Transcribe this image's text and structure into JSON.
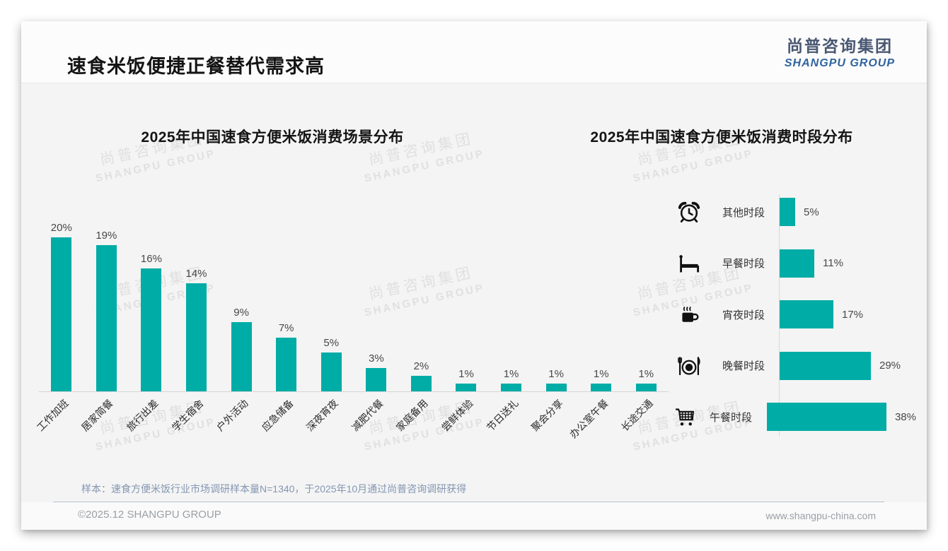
{
  "page": {
    "title": "速食米饭便捷正餐替代需求高",
    "logo": {
      "cn": "尚普咨询集团",
      "en": "SHANGPU GROUP"
    },
    "watermark": {
      "cn": "尚普咨询集团",
      "en": "SHANGPU GROUP"
    },
    "footer": {
      "sample_note": "样本：速食方便米饭行业市场调研样本量N=1340，于2025年10月通过尚普咨询调研获得",
      "copyright": "©2025.12 SHANGPU GROUP",
      "website": "www.shangpu-china.com"
    }
  },
  "colors": {
    "bar_teal": "#00aca6",
    "logo_blue": "#2f639f",
    "logo_gray": "#495772",
    "card_bg": "#f4f4f4"
  },
  "chart_data": [
    {
      "type": "bar",
      "orientation": "vertical",
      "title": "2025年中国速食方便米饭消费场景分布",
      "categories": [
        "工作加班",
        "居家简餐",
        "旅行出差",
        "学生宿舍",
        "户外活动",
        "应急储备",
        "深夜宵夜",
        "减肥代餐",
        "家庭备用",
        "尝鲜体验",
        "节日送礼",
        "聚会分享",
        "办公室午餐",
        "长途交通"
      ],
      "values": [
        20,
        19,
        16,
        14,
        9,
        7,
        5,
        3,
        2,
        1,
        1,
        1,
        1,
        1
      ],
      "unit": "%",
      "ylim": [
        0,
        20
      ],
      "grid": false,
      "value_labels": true,
      "legend": "none"
    },
    {
      "type": "bar",
      "orientation": "horizontal",
      "title": "2025年中国速食方便米饭消费时段分布",
      "categories": [
        "其他时段",
        "早餐时段",
        "宵夜时段",
        "晚餐时段",
        "午餐时段"
      ],
      "values": [
        5,
        11,
        17,
        29,
        38
      ],
      "icons": [
        "alarm-clock-icon",
        "bed-icon",
        "hot-drink-icon",
        "dinner-plate-icon",
        "shopping-cart-icon"
      ],
      "unit": "%",
      "xlim": [
        0,
        40
      ],
      "grid": false,
      "value_labels": true,
      "legend": "none"
    }
  ]
}
